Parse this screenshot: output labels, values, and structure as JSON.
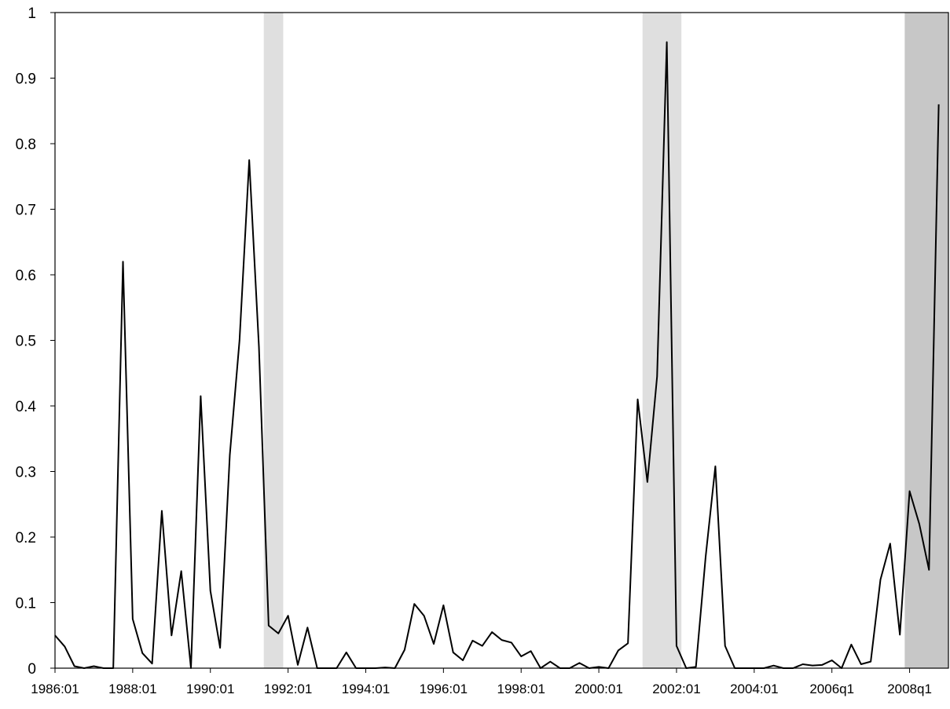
{
  "chart_data": {
    "type": "line",
    "title": "",
    "xlabel": "",
    "ylabel": "",
    "ylim": [
      0,
      1
    ],
    "yticks": [
      "0",
      "0.1",
      "0.2",
      "0.3",
      "0.4",
      "0.5",
      "0.6",
      "0.7",
      "0.8",
      "0.9",
      "1"
    ],
    "x_tick_labels": [
      "1986:01",
      "1988:01",
      "1990:01",
      "1992:01",
      "1994:01",
      "1996:01",
      "1998:01",
      "2000:01",
      "2002:01",
      "2004:01",
      "2006q1",
      "2008q1"
    ],
    "x_start": "1986:01",
    "x_end": "2009:01",
    "grid": false,
    "legend": "none",
    "line_color": "#000000",
    "shade_color": "#d9d9d9",
    "recession_shading": [
      {
        "start": "1991:03",
        "end": "1991:04"
      },
      {
        "start": "2001:02",
        "end": "2002:01"
      },
      {
        "start": "2008:01",
        "end": "2009:01"
      }
    ],
    "series": [
      {
        "values": [
          0.05,
          0.033,
          0.003,
          0.0,
          0.003,
          0.0,
          0.0,
          0.62,
          0.075,
          0.023,
          0.007,
          0.24,
          0.05,
          0.148,
          0.0,
          0.415,
          0.118,
          0.031,
          0.325,
          0.5,
          0.775,
          0.49,
          0.065,
          0.053,
          0.08,
          0.005,
          0.062,
          0.0,
          0.0,
          0.0,
          0.024,
          0.0,
          0.0,
          0.0,
          0.001,
          0.0,
          0.028,
          0.098,
          0.08,
          0.037,
          0.096,
          0.024,
          0.012,
          0.042,
          0.034,
          0.055,
          0.043,
          0.039,
          0.018,
          0.026,
          0.0,
          0.01,
          0.0,
          0.0,
          0.008,
          0.0,
          0.002,
          0.0,
          0.027,
          0.038,
          0.41,
          0.284,
          0.445,
          0.955,
          0.034,
          0.0,
          0.002,
          0.17,
          0.308,
          0.034,
          0.0,
          0.0,
          0.0,
          0.0,
          0.004,
          0.0,
          0.0,
          0.006,
          0.004,
          0.005,
          0.012,
          0.0,
          0.036,
          0.006,
          0.01,
          0.135,
          0.19,
          0.051,
          0.27,
          0.22,
          0.15,
          0.86
        ]
      }
    ]
  }
}
